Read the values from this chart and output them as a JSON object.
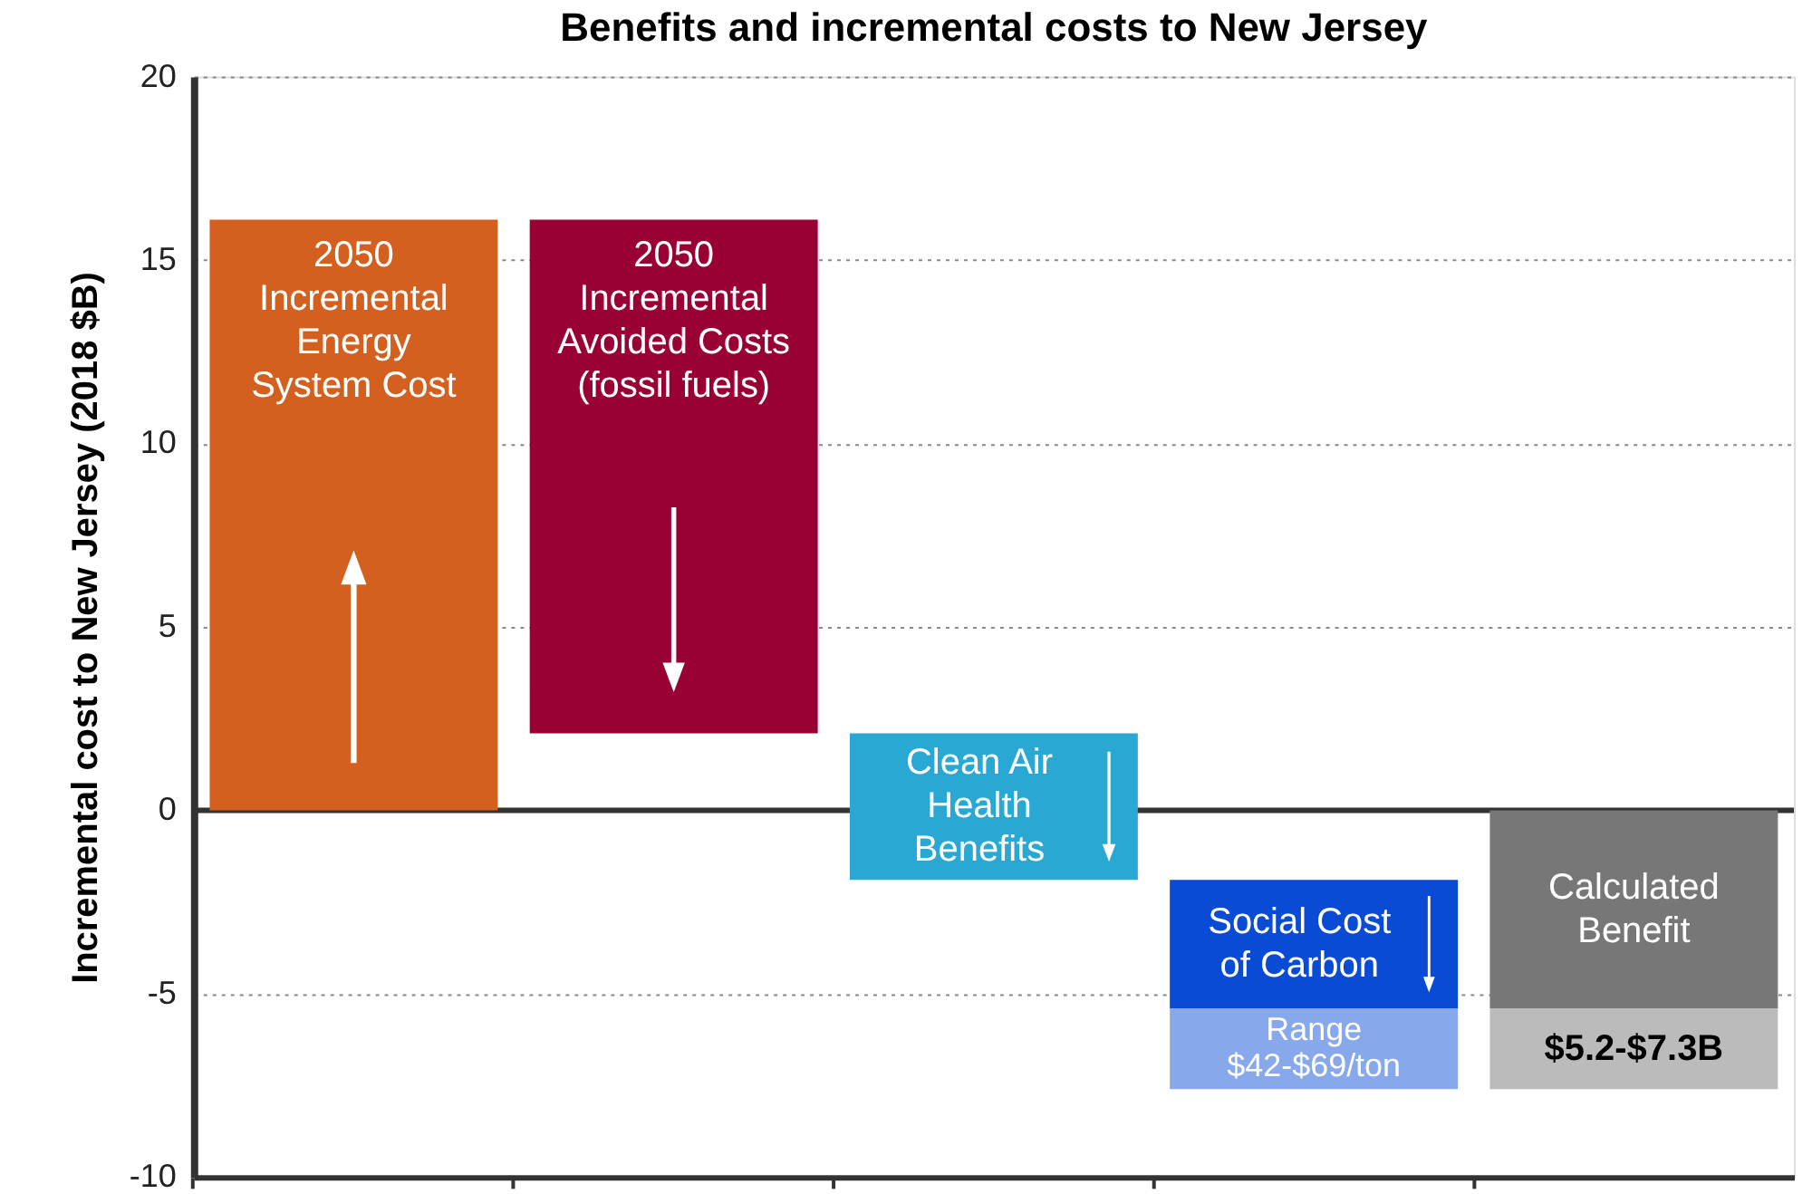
{
  "chart_data": {
    "type": "bar",
    "title": "Benefits and incremental costs to New Jersey",
    "ylabel": "Incremental cost to New Jersey (2018 $B)",
    "categories": [
      "2050\nIncremental\nEnergy\nSystem Cost",
      "2050\nIncremental\nAvoided Costs\n(fossil fuels)",
      "Clean Air\nHealth\nBenefits",
      "Social Cost\nof Carbon",
      "Calculated\nBenefit"
    ],
    "series": [
      {
        "colors": [
          "#d4601f",
          "#990033",
          "#29a8d4",
          "#0a4bd6",
          "#777777"
        ],
        "base": [
          0,
          16.1,
          2.1,
          -1.9,
          0
        ],
        "values": [
          16.1,
          -14.0,
          -4.0,
          -3.5,
          -5.4
        ]
      },
      {
        "colors": [
          null,
          null,
          null,
          "#87a8ea",
          "#bbbbbb"
        ],
        "base": [
          null,
          null,
          null,
          -5.4,
          -5.4
        ],
        "values": [
          null,
          null,
          null,
          -2.2,
          -2.2
        ],
        "value_labels": [
          null,
          null,
          null,
          "Range\n$42-$69/ton",
          "$5.2-$7.3B"
        ]
      }
    ],
    "ylim": [
      -10,
      20
    ],
    "yticks": [
      -10,
      -5,
      0,
      5,
      10,
      15,
      20
    ],
    "grid": "y",
    "tick_labels": "y",
    "ref_lines": [
      {
        "axis": "y",
        "value": 0,
        "color": "#333333"
      }
    ]
  }
}
